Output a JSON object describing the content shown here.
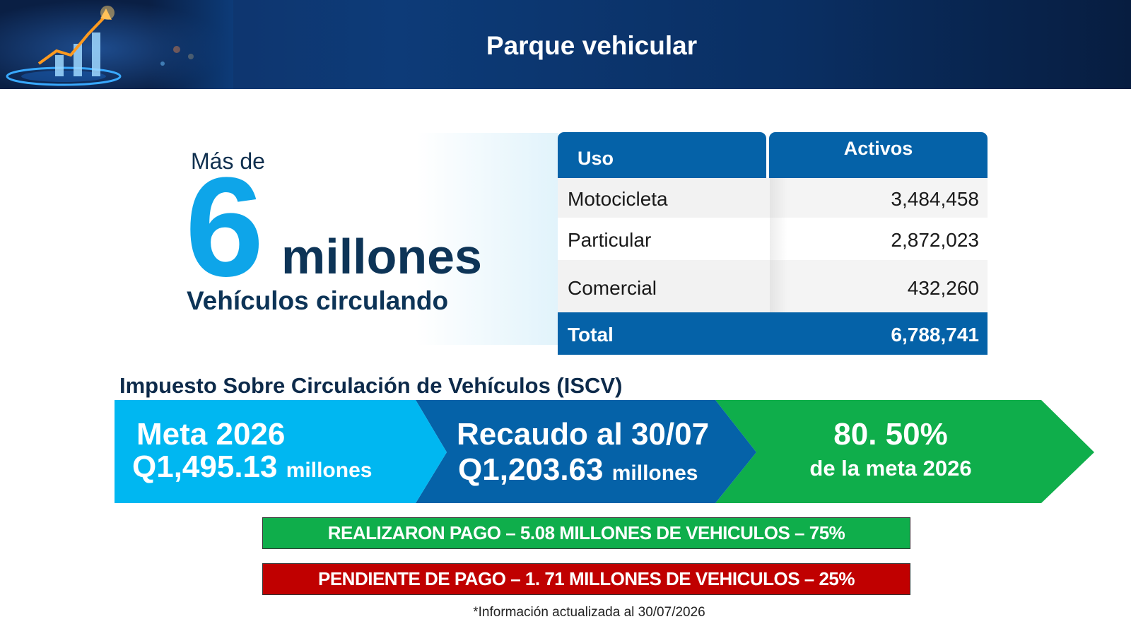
{
  "header": {
    "title": "Parque vehicular"
  },
  "hero": {
    "prefix": "Más de",
    "number": "6",
    "unit": "millones",
    "caption": "Vehículos circulando"
  },
  "table": {
    "headers": [
      "Uso",
      "Activos"
    ],
    "rows": [
      {
        "uso": "Motocicleta",
        "activos": "3,484,458"
      },
      {
        "uso": "Particular",
        "activos": "2,872,023"
      },
      {
        "uso": "Comercial",
        "activos": "432,260"
      }
    ],
    "total": {
      "label": "Total",
      "value": "6,788,741"
    }
  },
  "iscv": {
    "title": "Impuesto Sobre Circulación de Vehículos (ISCV)",
    "meta": {
      "line1": "Meta 2026",
      "amount": "Q1,495.13",
      "unit": "millones"
    },
    "recaudo": {
      "line1": "Recaudo al 30/07",
      "amount": "Q1,203.63",
      "unit": "millones"
    },
    "avance": {
      "line1": "80. 50%",
      "line2": "de la meta 2026"
    },
    "colors": {
      "meta": "#00b7f1",
      "recaudo": "#0562a8",
      "avance": "#0fae4b"
    }
  },
  "status_bars": {
    "paid": "REALIZARON PAGO – 5.08 MILLONES DE VEHICULOS – 75%",
    "pending": "PENDIENTE DE PAGO – 1. 71 MILLONES DE VEHICULOS – 25%",
    "colors": {
      "paid": "#0fae4b",
      "pending": "#c00000"
    }
  },
  "footnote": "*Información actualizada al 30/07/2026"
}
